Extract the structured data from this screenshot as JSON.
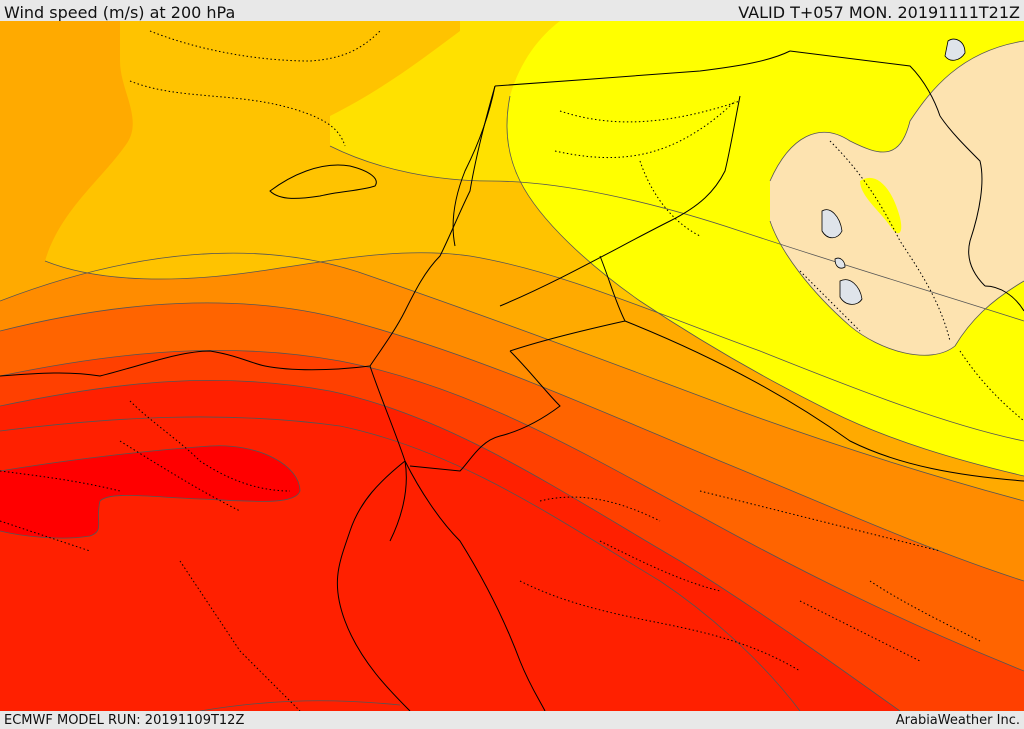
{
  "header": {
    "title": "Wind speed (m/s) at 200 hPa",
    "valid": "VALID T+057 MON. 20191111T21Z"
  },
  "footer": {
    "model_run": "ECMWF MODEL RUN: 20191109T12Z",
    "credit": "ArabiaWeather Inc."
  },
  "map": {
    "field": "wind speed at 200 hPa",
    "colors": {
      "very_light": "#fde3b0",
      "yellow": "#ffff00",
      "light_yellow": "#ffe100",
      "gold": "#ffc300",
      "light_orange": "#ffaa00",
      "orange": "#ff8c00",
      "dark_orange": "#ff6400",
      "orange_red": "#ff4000",
      "red": "#ff2000",
      "bright_red": "#ff0000",
      "land_outline": "#000000",
      "contour": "#555555",
      "lake": "#dfe4ea"
    }
  }
}
